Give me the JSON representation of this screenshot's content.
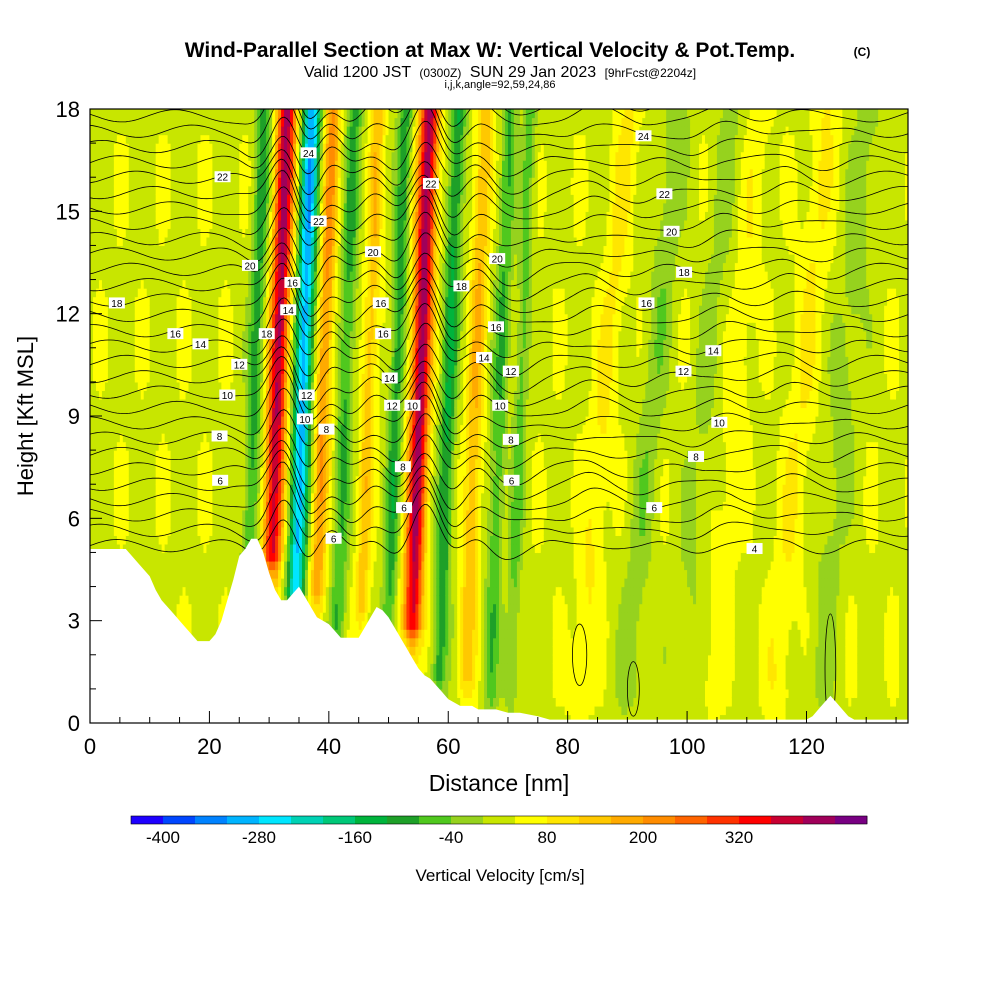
{
  "chart_data": {
    "type": "heatmap",
    "title": "Wind-Parallel Section at Max W: Vertical Velocity & Pot.Temp.",
    "title_mark": "(C)",
    "subtitle": {
      "valid": "Valid 1200 JST",
      "zulu": "(0300Z)",
      "date": "SUN 29 Jan 2023",
      "forecast": "[9hrFcst@2204z]"
    },
    "subtitle2": "i,j,k,angle=92,59,24,86",
    "xlabel": "Distance [nm]",
    "ylabel": "Height [Kft MSL]",
    "xlim": [
      0,
      137
    ],
    "ylim": [
      0,
      18
    ],
    "xticks": [
      0,
      20,
      40,
      60,
      80,
      100,
      120
    ],
    "yticks": [
      0,
      3,
      6,
      9,
      12,
      15,
      18
    ],
    "grid": false,
    "colorbar": {
      "label": "Vertical Velocity [cm/s]",
      "tick_values": [
        -400,
        -280,
        -160,
        -40,
        80,
        200,
        320
      ],
      "colors": [
        "#1e00ff",
        "#0046ff",
        "#0082ff",
        "#00b4ff",
        "#00e6ff",
        "#00d2b4",
        "#00c878",
        "#00b43c",
        "#1ea028",
        "#50c81e",
        "#96d21e",
        "#c8e600",
        "#ffff00",
        "#ffe600",
        "#ffc800",
        "#ffaa00",
        "#ff8c00",
        "#ff6400",
        "#ff3200",
        "#ff0000",
        "#c80032",
        "#a0005a",
        "#780082"
      ]
    },
    "terrain_kft": [
      [
        0,
        5.1
      ],
      [
        6,
        5.1
      ],
      [
        8,
        4.7
      ],
      [
        10,
        4.3
      ],
      [
        11,
        3.9
      ],
      [
        12,
        3.6
      ],
      [
        13,
        3.4
      ],
      [
        14,
        3.2
      ],
      [
        15,
        3.0
      ],
      [
        16,
        2.8
      ],
      [
        17,
        2.6
      ],
      [
        18,
        2.4
      ],
      [
        20,
        2.4
      ],
      [
        21,
        2.6
      ],
      [
        22,
        3.0
      ],
      [
        23,
        3.6
      ],
      [
        24,
        4.2
      ],
      [
        25,
        4.9
      ],
      [
        26,
        5.1
      ],
      [
        27,
        5.4
      ],
      [
        28,
        5.4
      ],
      [
        29,
        5.0
      ],
      [
        30,
        4.4
      ],
      [
        31,
        3.9
      ],
      [
        32,
        3.6
      ],
      [
        33,
        3.6
      ],
      [
        34,
        3.8
      ],
      [
        35,
        4.0
      ],
      [
        36,
        3.7
      ],
      [
        37,
        3.4
      ],
      [
        38,
        3.1
      ],
      [
        39,
        3.0
      ],
      [
        40,
        2.9
      ],
      [
        41,
        2.7
      ],
      [
        42,
        2.5
      ],
      [
        45,
        2.5
      ],
      [
        46,
        2.8
      ],
      [
        47,
        3.1
      ],
      [
        48,
        3.4
      ],
      [
        49,
        3.3
      ],
      [
        50,
        3.1
      ],
      [
        51,
        2.8
      ],
      [
        52,
        2.5
      ],
      [
        53,
        2.2
      ],
      [
        54,
        1.9
      ],
      [
        55,
        1.6
      ],
      [
        56,
        1.4
      ],
      [
        57,
        1.3
      ],
      [
        58,
        1.1
      ],
      [
        59,
        0.9
      ],
      [
        60,
        0.7
      ],
      [
        61,
        0.6
      ],
      [
        62,
        0.5
      ],
      [
        64,
        0.5
      ],
      [
        65,
        0.4
      ],
      [
        68,
        0.4
      ],
      [
        70,
        0.3
      ],
      [
        72,
        0.3
      ],
      [
        75,
        0.2
      ],
      [
        77,
        0.1
      ],
      [
        80,
        0.1
      ],
      [
        85,
        0.1
      ],
      [
        120,
        0.1
      ],
      [
        121,
        0.2
      ],
      [
        122,
        0.4
      ],
      [
        123,
        0.6
      ],
      [
        124,
        0.8
      ],
      [
        125,
        0.6
      ],
      [
        126,
        0.4
      ],
      [
        127,
        0.2
      ],
      [
        128,
        0.1
      ],
      [
        137,
        0.1
      ]
    ],
    "updrafts": [
      {
        "x": 30.5,
        "width": 1.6,
        "w": 380,
        "base_kft": 5.0
      },
      {
        "x": 38.0,
        "width": 1.3,
        "w": 180,
        "base_kft": 4.0
      },
      {
        "x": 54.0,
        "width": 1.6,
        "w": 400,
        "base_kft": 3.0
      },
      {
        "x": 45.5,
        "width": 1.2,
        "w": 120,
        "base_kft": 3.5
      },
      {
        "x": 63.0,
        "width": 1.4,
        "w": 130,
        "base_kft": 1.5
      },
      {
        "x": 82.0,
        "width": 2.0,
        "w": 60,
        "base_kft": 1.0
      },
      {
        "x": 104.0,
        "width": 2.2,
        "w": 40,
        "base_kft": 1.0
      },
      {
        "x": 115.0,
        "width": 2.5,
        "w": 50,
        "base_kft": 1.0
      }
    ],
    "downdrafts": [
      {
        "x": 34.5,
        "width": 1.5,
        "w": -340,
        "base_kft": 4.0
      },
      {
        "x": 26.5,
        "width": 1.3,
        "w": -130,
        "base_kft": 4.0
      },
      {
        "x": 41.5,
        "width": 1.3,
        "w": -120,
        "base_kft": 3.0
      },
      {
        "x": 50.0,
        "width": 1.2,
        "w": -140,
        "base_kft": 3.0
      },
      {
        "x": 58.5,
        "width": 1.3,
        "w": -160,
        "base_kft": 1.5
      },
      {
        "x": 67.0,
        "width": 1.3,
        "w": -110,
        "base_kft": 1.0
      },
      {
        "x": 70.5,
        "width": 1.1,
        "w": -90,
        "base_kft": 1.0
      },
      {
        "x": 90.0,
        "width": 2.2,
        "w": -60,
        "base_kft": 1.0
      },
      {
        "x": 99.0,
        "width": 2.5,
        "w": -40,
        "base_kft": 1.0
      },
      {
        "x": 122.0,
        "width": 2.5,
        "w": -50,
        "base_kft": 1.0
      }
    ],
    "isentrope_labels": [
      {
        "text": "18",
        "x": 4.5,
        "y": 12.3
      },
      {
        "text": "16",
        "x": 14.3,
        "y": 11.4
      },
      {
        "text": "14",
        "x": 18.5,
        "y": 11.1
      },
      {
        "text": "12",
        "x": 25.0,
        "y": 10.5
      },
      {
        "text": "10",
        "x": 23.0,
        "y": 9.6
      },
      {
        "text": "8",
        "x": 21.7,
        "y": 8.4
      },
      {
        "text": "6",
        "x": 21.8,
        "y": 7.1
      },
      {
        "text": "22",
        "x": 22.2,
        "y": 16.0
      },
      {
        "text": "20",
        "x": 26.8,
        "y": 13.4
      },
      {
        "text": "18",
        "x": 29.6,
        "y": 11.4
      },
      {
        "text": "14",
        "x": 33.2,
        "y": 12.1
      },
      {
        "text": "16",
        "x": 33.9,
        "y": 12.9
      },
      {
        "text": "24",
        "x": 36.6,
        "y": 16.7
      },
      {
        "text": "22",
        "x": 38.3,
        "y": 14.7
      },
      {
        "text": "12",
        "x": 36.3,
        "y": 9.6
      },
      {
        "text": "10",
        "x": 36.0,
        "y": 8.9
      },
      {
        "text": "8",
        "x": 39.6,
        "y": 8.6
      },
      {
        "text": "6",
        "x": 40.8,
        "y": 5.4
      },
      {
        "text": "20",
        "x": 47.4,
        "y": 13.8
      },
      {
        "text": "16",
        "x": 48.7,
        "y": 12.3
      },
      {
        "text": "16",
        "x": 49.1,
        "y": 11.4
      },
      {
        "text": "14",
        "x": 50.2,
        "y": 10.1
      },
      {
        "text": "12",
        "x": 50.6,
        "y": 9.3
      },
      {
        "text": "10",
        "x": 54.0,
        "y": 9.3
      },
      {
        "text": "8",
        "x": 52.4,
        "y": 7.5
      },
      {
        "text": "6",
        "x": 52.6,
        "y": 6.3
      },
      {
        "text": "22",
        "x": 57.1,
        "y": 15.8
      },
      {
        "text": "18",
        "x": 62.2,
        "y": 12.8
      },
      {
        "text": "20",
        "x": 68.2,
        "y": 13.6
      },
      {
        "text": "16",
        "x": 68.0,
        "y": 11.6
      },
      {
        "text": "14",
        "x": 66.0,
        "y": 10.7
      },
      {
        "text": "12",
        "x": 70.5,
        "y": 10.3
      },
      {
        "text": "10",
        "x": 68.7,
        "y": 9.3
      },
      {
        "text": "8",
        "x": 70.5,
        "y": 8.3
      },
      {
        "text": "6",
        "x": 70.6,
        "y": 7.1
      },
      {
        "text": "24",
        "x": 92.7,
        "y": 17.2
      },
      {
        "text": "22",
        "x": 96.2,
        "y": 15.5
      },
      {
        "text": "20",
        "x": 97.4,
        "y": 14.4
      },
      {
        "text": "18",
        "x": 99.5,
        "y": 13.2
      },
      {
        "text": "16",
        "x": 93.2,
        "y": 12.3
      },
      {
        "text": "14",
        "x": 104.4,
        "y": 10.9
      },
      {
        "text": "12",
        "x": 99.4,
        "y": 10.3
      },
      {
        "text": "10",
        "x": 105.4,
        "y": 8.8
      },
      {
        "text": "8",
        "x": 101.5,
        "y": 7.8
      },
      {
        "text": "6",
        "x": 94.5,
        "y": 6.3
      },
      {
        "text": "4",
        "x": 111.3,
        "y": 5.1
      }
    ]
  }
}
